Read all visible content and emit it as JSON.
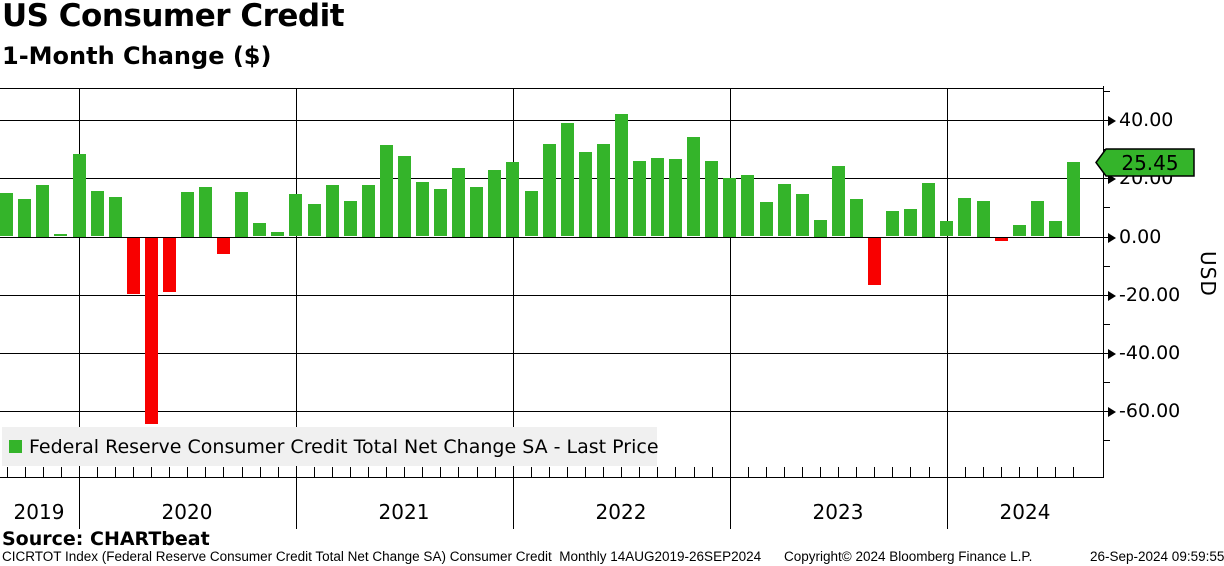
{
  "header": {
    "title": "US Consumer Credit",
    "subtitle": "1-Month Change ($)"
  },
  "legend": {
    "label": "Federal Reserve Consumer Credit Total Net Change SA - Last Price"
  },
  "chart_data": {
    "type": "bar",
    "title": "US Consumer Credit",
    "subtitle": "1-Month Change ($)",
    "ylabel": "USD",
    "y_unit": "USD",
    "ylim": [
      -75,
      51
    ],
    "grid": "on",
    "legend_position": "bottom-left",
    "axis_side": "right",
    "y_major_ticks": [
      40,
      20,
      0,
      -20,
      -40,
      -60
    ],
    "y_major_labels": [
      "40.00",
      "20.00",
      "0.00",
      "-20.00",
      "-40.00",
      "-60.00"
    ],
    "y_minor_ticks": [
      50,
      30,
      10,
      -10,
      -30,
      -50,
      -70
    ],
    "x_year_labels": [
      "2019",
      "2020",
      "2021",
      "2022",
      "2023",
      "2024"
    ],
    "last_price": 25.45,
    "last_price_label": "25.45",
    "colors": {
      "positive": "#34b42a",
      "negative": "#f80000",
      "legend_bg": "#f0f0f0",
      "axis": "#000000"
    },
    "series": [
      {
        "name": "Federal Reserve Consumer Credit Total Net Change SA - Last Price",
        "points": [
          {
            "month": "Aug 2019",
            "value": 14.9
          },
          {
            "month": "Sep 2019",
            "value": 12.9
          },
          {
            "month": "Oct 2019",
            "value": 17.8
          },
          {
            "month": "Nov 2019",
            "value": 0.8
          },
          {
            "month": "Dec 2019",
            "value": 28.4
          },
          {
            "month": "Jan 2020",
            "value": 15.5
          },
          {
            "month": "Feb 2020",
            "value": 13.7
          },
          {
            "month": "Mar 2020",
            "value": -19.2
          },
          {
            "month": "Apr 2020",
            "value": -63.9
          },
          {
            "month": "May 2020",
            "value": -18.4
          },
          {
            "month": "Jun 2020",
            "value": 15.4
          },
          {
            "month": "Jul 2020",
            "value": 17.1
          },
          {
            "month": "Aug 2020",
            "value": -5.5
          },
          {
            "month": "Sep 2020",
            "value": 15.4
          },
          {
            "month": "Oct 2020",
            "value": 4.6
          },
          {
            "month": "Nov 2020",
            "value": 1.4
          },
          {
            "month": "Dec 2020",
            "value": 14.6
          },
          {
            "month": "Jan 2021",
            "value": 11.1
          },
          {
            "month": "Feb 2021",
            "value": 17.8
          },
          {
            "month": "Mar 2021",
            "value": 12.1
          },
          {
            "month": "Apr 2021",
            "value": 17.8
          },
          {
            "month": "May 2021",
            "value": 31.6
          },
          {
            "month": "Jun 2021",
            "value": 27.8
          },
          {
            "month": "Jul 2021",
            "value": 18.6
          },
          {
            "month": "Aug 2021",
            "value": 16.3
          },
          {
            "month": "Sep 2021",
            "value": 23.6
          },
          {
            "month": "Oct 2021",
            "value": 17.1
          },
          {
            "month": "Nov 2021",
            "value": 22.9
          },
          {
            "month": "Dec 2021",
            "value": 25.7
          },
          {
            "month": "Jan 2022",
            "value": 15.5
          },
          {
            "month": "Feb 2022",
            "value": 31.8
          },
          {
            "month": "Mar 2022",
            "value": 39.0
          },
          {
            "month": "Apr 2022",
            "value": 29.2
          },
          {
            "month": "May 2022",
            "value": 31.8
          },
          {
            "month": "Jun 2022",
            "value": 42.2
          },
          {
            "month": "Jul 2022",
            "value": 25.9
          },
          {
            "month": "Aug 2022",
            "value": 26.9
          },
          {
            "month": "Sep 2022",
            "value": 26.8
          },
          {
            "month": "Oct 2022",
            "value": 34.1
          },
          {
            "month": "Nov 2022",
            "value": 26.0
          },
          {
            "month": "Dec 2022",
            "value": 20.2
          },
          {
            "month": "Jan 2023",
            "value": 21.1
          },
          {
            "month": "Feb 2023",
            "value": 11.7
          },
          {
            "month": "Mar 2023",
            "value": 17.9
          },
          {
            "month": "Apr 2023",
            "value": 14.6
          },
          {
            "month": "May 2023",
            "value": 5.7
          },
          {
            "month": "Jun 2023",
            "value": 24.1
          },
          {
            "month": "Jul 2023",
            "value": 12.9
          },
          {
            "month": "Aug 2023",
            "value": -16.2
          },
          {
            "month": "Sep 2023",
            "value": 8.7
          },
          {
            "month": "Oct 2023",
            "value": 9.4
          },
          {
            "month": "Nov 2023",
            "value": 18.5
          },
          {
            "month": "Dec 2023",
            "value": 5.2
          },
          {
            "month": "Jan 2024",
            "value": 13.2
          },
          {
            "month": "Feb 2024",
            "value": 12.3
          },
          {
            "month": "Mar 2024",
            "value": -0.9
          },
          {
            "month": "Apr 2024",
            "value": 3.9
          },
          {
            "month": "May 2024",
            "value": 12.1
          },
          {
            "month": "Jun 2024",
            "value": 5.4
          },
          {
            "month": "Jul 2024",
            "value": 25.45
          }
        ]
      }
    ]
  },
  "footer": {
    "source": "Source: CHARTbeat",
    "security_line": "CICRTOT Index (Federal Reserve Consumer Credit Total Net Change SA) Consumer Credit  Monthly 14AUG2019-26SEP2024",
    "copyright": "Copyright© 2024 Bloomberg Finance L.P.",
    "timestamp": "26-Sep-2024 09:59:55"
  }
}
